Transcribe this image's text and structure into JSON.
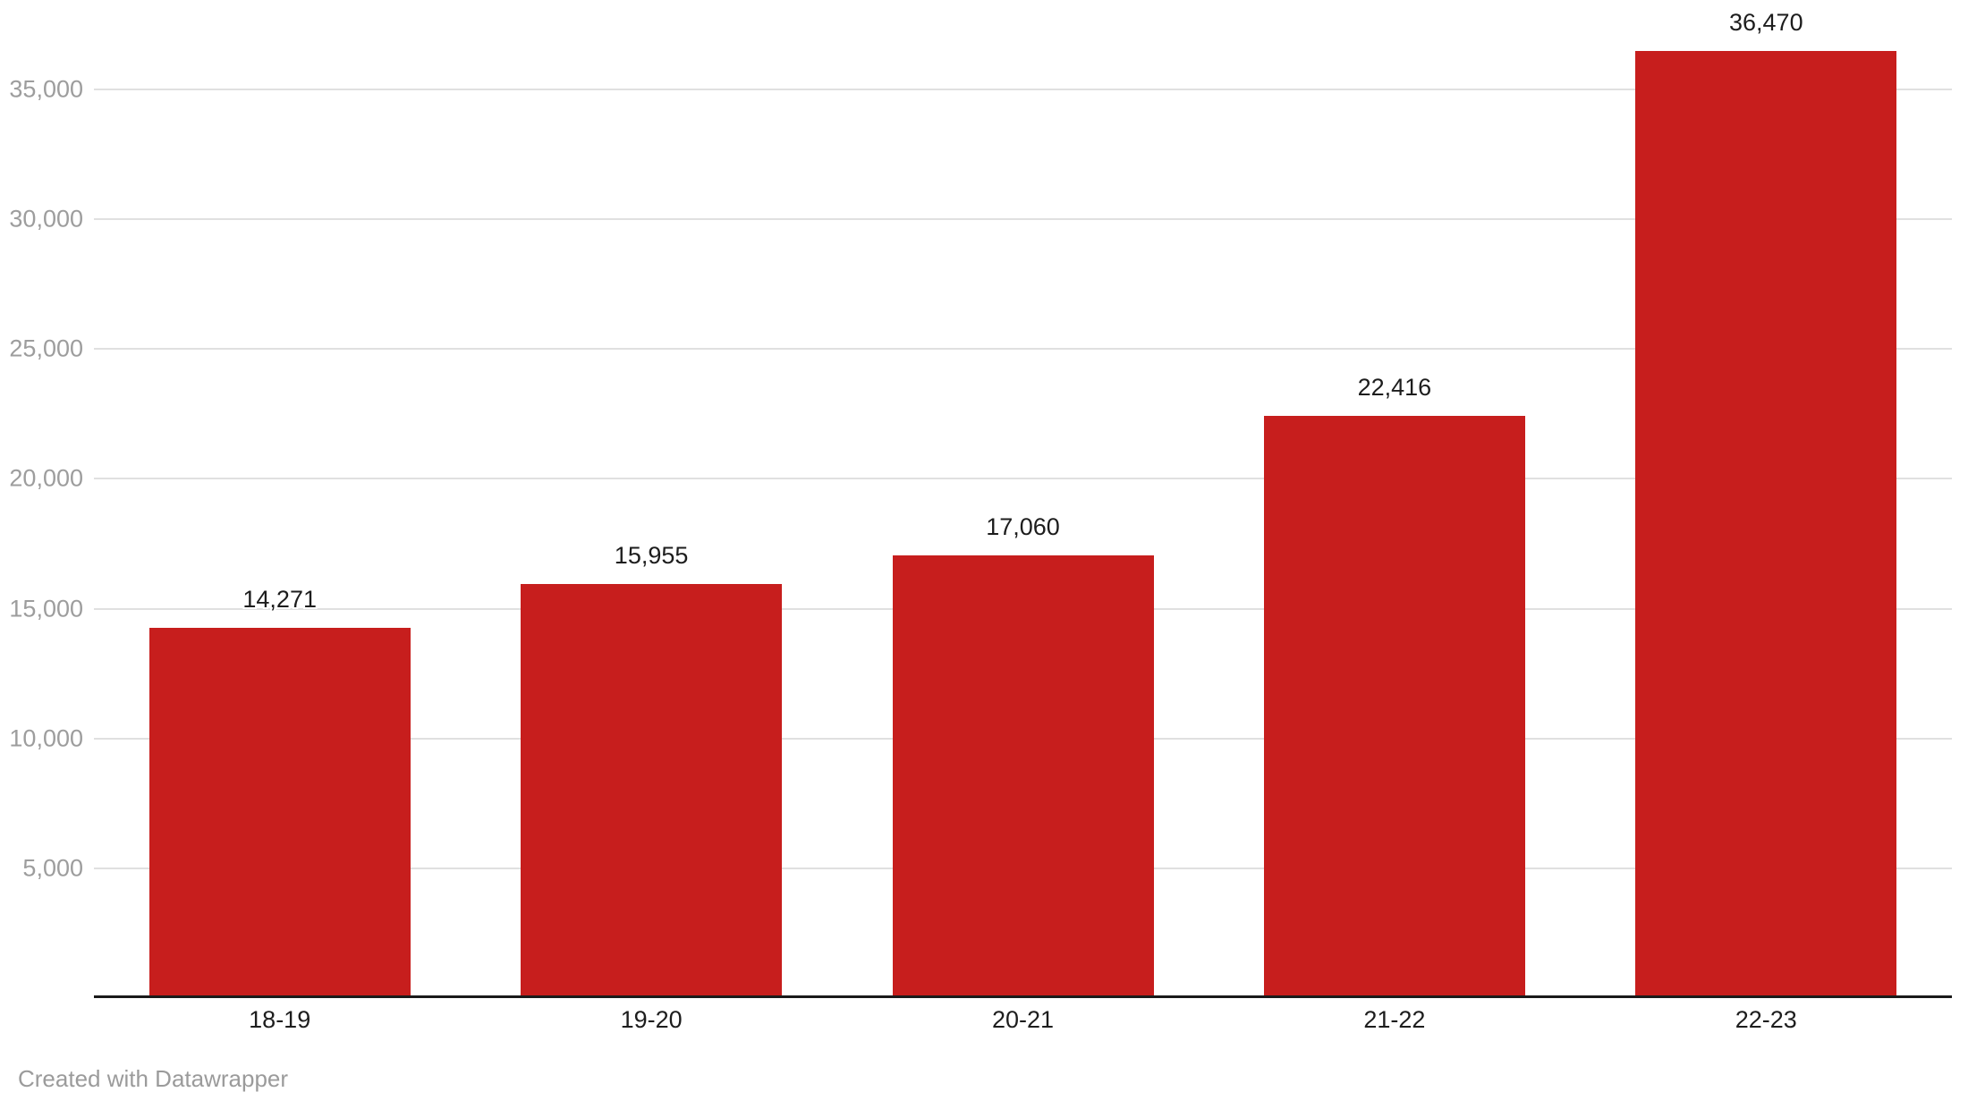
{
  "chart_data": {
    "type": "bar",
    "title": "",
    "xlabel": "",
    "ylabel": "",
    "categories": [
      "18-19",
      "19-20",
      "20-21",
      "21-22",
      "22-23"
    ],
    "values": [
      14271,
      15955,
      17060,
      22416,
      36470
    ],
    "value_labels": [
      "14,271",
      "15,955",
      "17,060",
      "22,416",
      "36,470"
    ],
    "ylim": [
      0,
      38440
    ],
    "grid": true,
    "legend": false,
    "y_ticks": [
      {
        "value": 5000,
        "label": "5,000"
      },
      {
        "value": 10000,
        "label": "10,000"
      },
      {
        "value": 15000,
        "label": "15,000"
      },
      {
        "value": 20000,
        "label": "20,000"
      },
      {
        "value": 25000,
        "label": "25,000"
      },
      {
        "value": 30000,
        "label": "30,000"
      },
      {
        "value": 35000,
        "label": "35,000"
      }
    ],
    "bar_color": "#c71e1d"
  },
  "colors": {
    "bar": "#c71e1d",
    "gridline": "#e0e0e0",
    "axis_line": "#1a1a1a",
    "tick_label": "#9d9d9d",
    "value_label": "#1d1d1d",
    "category_label": "#1d1d1d",
    "footer_text": "#9b9b9b",
    "background": "#ffffff"
  },
  "footer": {
    "credit": "Created with Datawrapper"
  }
}
